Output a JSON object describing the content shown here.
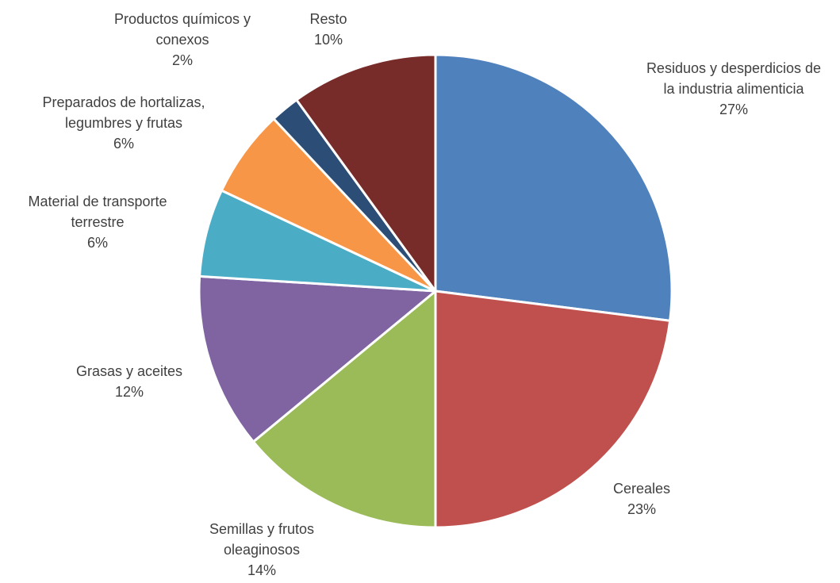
{
  "chart_data": {
    "type": "pie",
    "slices": [
      {
        "label": [
          "Residuos y desperdicios de",
          "la industria alimenticia"
        ],
        "value": 27,
        "percent_label": "27%",
        "color": "#4F81BD"
      },
      {
        "label": [
          "Cereales"
        ],
        "value": 23,
        "percent_label": "23%",
        "color": "#C0504D"
      },
      {
        "label": [
          "Semillas y frutos",
          "oleaginosos"
        ],
        "value": 14,
        "percent_label": "14%",
        "color": "#9BBB59"
      },
      {
        "label": [
          "Grasas y aceites"
        ],
        "value": 12,
        "percent_label": "12%",
        "color": "#8064A2"
      },
      {
        "label": [
          "Material de transporte",
          "terrestre"
        ],
        "value": 6,
        "percent_label": "6%",
        "color": "#4BACC6"
      },
      {
        "label": [
          "Preparados de hortalizas,",
          "legumbres y frutas"
        ],
        "value": 6,
        "percent_label": "6%",
        "color": "#F79646"
      },
      {
        "label": [
          "Productos químicos y",
          "conexos"
        ],
        "value": 2,
        "percent_label": "2%",
        "color": "#2C4D75"
      },
      {
        "label": [
          "Resto"
        ],
        "value": 10,
        "percent_label": "10%",
        "color": "#772C2A"
      }
    ],
    "start": "12 o'clock",
    "direction": "clockwise",
    "legend": "none",
    "label_color": "#404040"
  }
}
